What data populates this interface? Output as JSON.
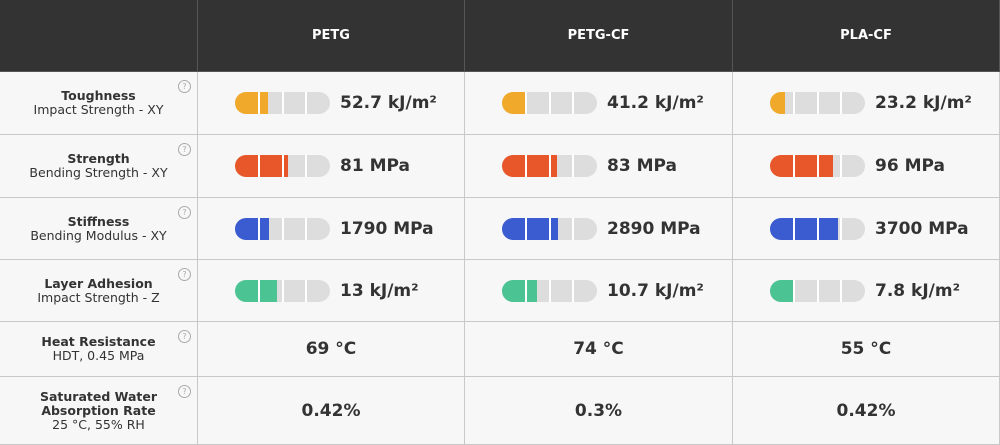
{
  "header": {
    "columns": [
      "PETG",
      "PETG-CF",
      "PLA-CF"
    ]
  },
  "rows": [
    {
      "title": "Toughness",
      "subtitle": "Impact Strength - XY",
      "color": "#f0a92a",
      "cells": [
        {
          "text": "52.7 kJ/m²",
          "level": 35
        },
        {
          "text": "41.2 kJ/m²",
          "level": 26
        },
        {
          "text": "23.2 kJ/m²",
          "level": 16
        }
      ]
    },
    {
      "title": "Strength",
      "subtitle": "Bending Strength - XY",
      "color": "#e8572a",
      "cells": [
        {
          "text": "81 MPa",
          "level": 56
        },
        {
          "text": "83 MPa",
          "level": 58
        },
        {
          "text": "96 MPa",
          "level": 66
        }
      ]
    },
    {
      "title": "Stiffness",
      "subtitle": "Bending Modulus - XY",
      "color": "#3b5bd1",
      "cells": [
        {
          "text": "1790 MPa",
          "level": 36
        },
        {
          "text": "2890 MPa",
          "level": 59
        },
        {
          "text": "3700 MPa",
          "level": 72
        }
      ]
    },
    {
      "title": "Layer Adhesion",
      "subtitle": "Impact Strength - Z",
      "color": "#4cc393",
      "cells": [
        {
          "text": "13 kJ/m²",
          "level": 44
        },
        {
          "text": "10.7 kJ/m²",
          "level": 37
        },
        {
          "text": "7.8 kJ/m²",
          "level": 25
        }
      ]
    },
    {
      "title": "Heat Resistance",
      "subtitle": "HDT, 0.45 MPa",
      "cells": [
        {
          "text": "69 °C"
        },
        {
          "text": "74 °C"
        },
        {
          "text": "55 °C"
        }
      ]
    },
    {
      "title": "Saturated Water Absorption Rate",
      "subtitle": "25 °C, 55% RH",
      "cells": [
        {
          "text": "0.42%"
        },
        {
          "text": "0.3%"
        },
        {
          "text": "0.42%"
        }
      ]
    }
  ]
}
